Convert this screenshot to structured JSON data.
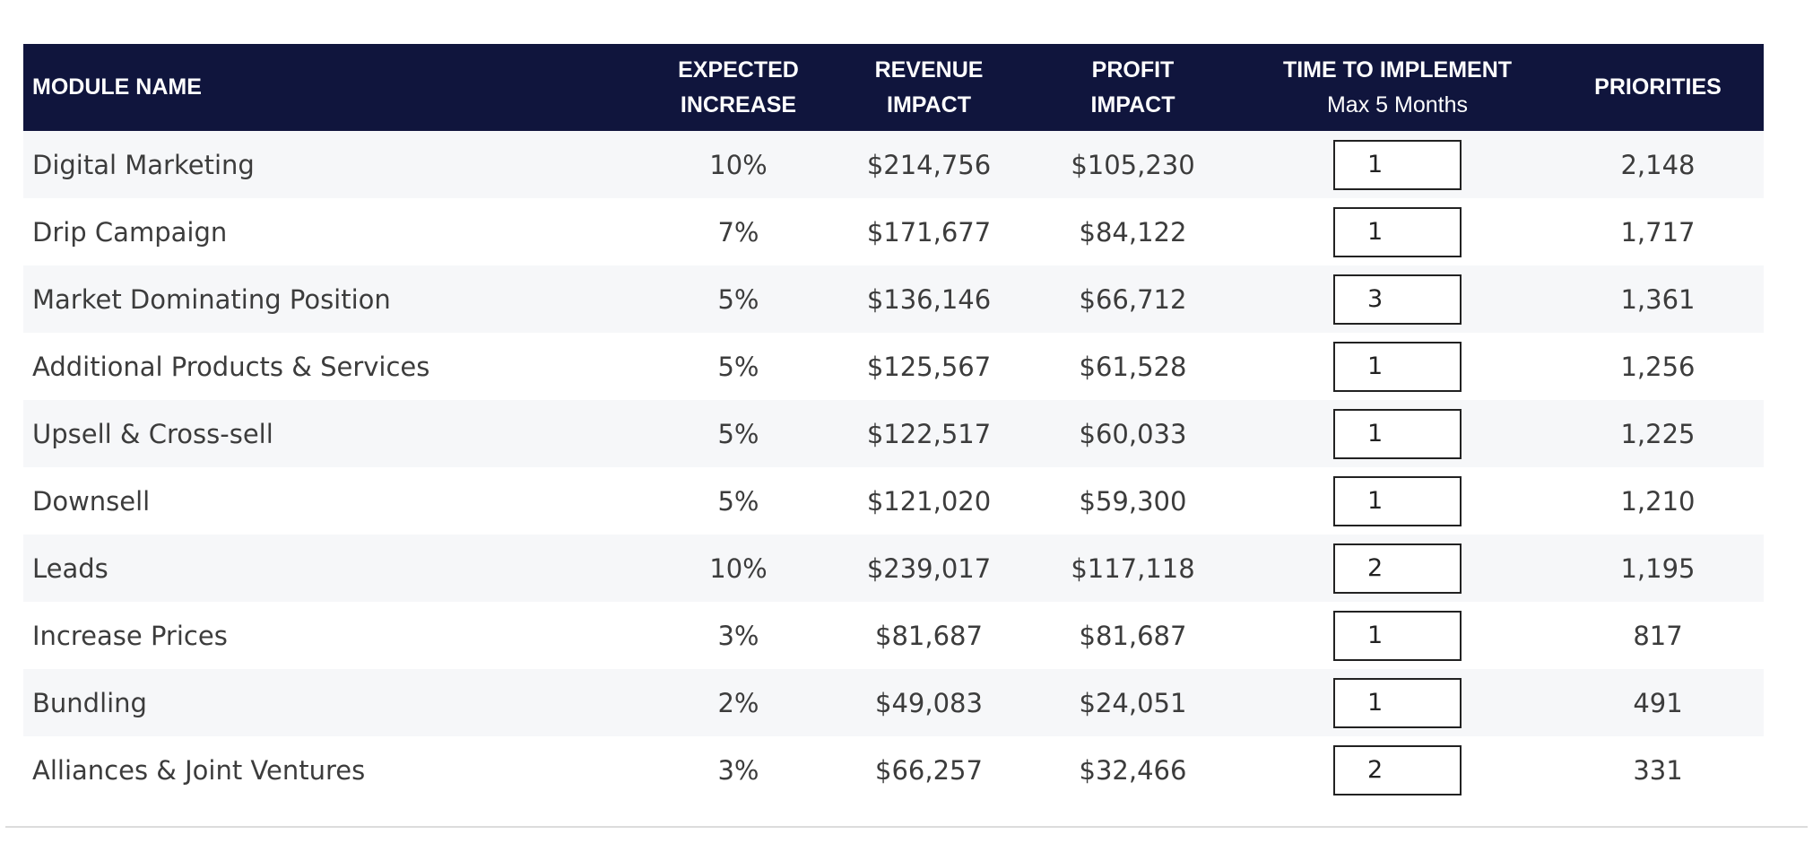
{
  "table": {
    "headers": {
      "module_name": "MODULE NAME",
      "expected_increase_line1": "EXPECTED",
      "expected_increase_line2": "INCREASE",
      "revenue_impact_line1": "REVENUE",
      "revenue_impact_line2": "IMPACT",
      "profit_impact_line1": "PROFIT",
      "profit_impact_line2": "IMPACT",
      "time_to_implement_line1": "TIME TO IMPLEMENT",
      "time_to_implement_line2": "Max 5 Months",
      "priorities": "PRIORITIES"
    },
    "rows": [
      {
        "name": "Digital Marketing",
        "increase": "10%",
        "revenue": "$214,756",
        "profit": "$105,230",
        "time": "1",
        "priority": "2,148"
      },
      {
        "name": "Drip Campaign",
        "increase": "7%",
        "revenue": "$171,677",
        "profit": "$84,122",
        "time": "1",
        "priority": "1,717"
      },
      {
        "name": "Market Dominating Position",
        "increase": "5%",
        "revenue": "$136,146",
        "profit": "$66,712",
        "time": "3",
        "priority": "1,361"
      },
      {
        "name": "Additional Products & Services",
        "increase": "5%",
        "revenue": "$125,567",
        "profit": "$61,528",
        "time": "1",
        "priority": "1,256"
      },
      {
        "name": "Upsell & Cross-sell",
        "increase": "5%",
        "revenue": "$122,517",
        "profit": "$60,033",
        "time": "1",
        "priority": "1,225"
      },
      {
        "name": "Downsell",
        "increase": "5%",
        "revenue": "$121,020",
        "profit": "$59,300",
        "time": "1",
        "priority": "1,210"
      },
      {
        "name": "Leads",
        "increase": "10%",
        "revenue": "$239,017",
        "profit": "$117,118",
        "time": "2",
        "priority": "1,195"
      },
      {
        "name": "Increase Prices",
        "increase": "3%",
        "revenue": "$81,687",
        "profit": "$81,687",
        "time": "1",
        "priority": "817"
      },
      {
        "name": "Bundling",
        "increase": "2%",
        "revenue": "$49,083",
        "profit": "$24,051",
        "time": "1",
        "priority": "491"
      },
      {
        "name": "Alliances & Joint Ventures",
        "increase": "3%",
        "revenue": "$66,257",
        "profit": "$32,466",
        "time": "2",
        "priority": "331"
      }
    ]
  },
  "colors": {
    "header_background": "#10153d",
    "header_text": "#ffffff",
    "row_stripe": "#f6f7f9"
  }
}
